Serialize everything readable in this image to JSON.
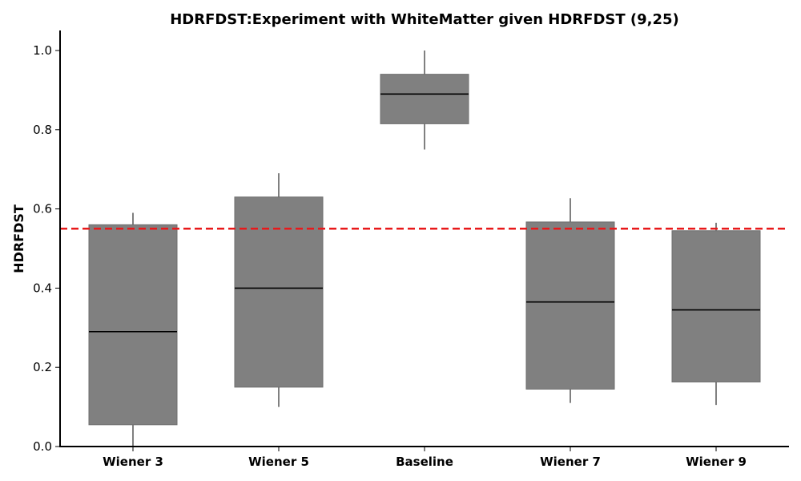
{
  "chart_data": {
    "type": "box",
    "title": "HDRFDST:Experiment with WhiteMatter given HDRFDST (9,25)",
    "xlabel": "",
    "ylabel": "HDRFDST",
    "ylim": [
      0.0,
      1.05
    ],
    "yticks": [
      0.0,
      0.2,
      0.4,
      0.6,
      0.8,
      1.0
    ],
    "ytick_labels": [
      "0.0",
      "0.2",
      "0.4",
      "0.6",
      "0.8",
      "1.0"
    ],
    "categories": [
      "Wiener 3",
      "Wiener 5",
      "Baseline",
      "Wiener 7",
      "Wiener 9"
    ],
    "boxes": [
      {
        "label": "Wiener 3",
        "whisker_low": 0.0,
        "q1": 0.055,
        "median": 0.29,
        "q3": 0.56,
        "whisker_high": 0.59
      },
      {
        "label": "Wiener 5",
        "whisker_low": 0.1,
        "q1": 0.15,
        "median": 0.4,
        "q3": 0.63,
        "whisker_high": 0.69
      },
      {
        "label": "Baseline",
        "whisker_low": 0.75,
        "q1": 0.815,
        "median": 0.89,
        "q3": 0.94,
        "whisker_high": 1.0
      },
      {
        "label": "Wiener 7",
        "whisker_low": 0.11,
        "q1": 0.145,
        "median": 0.365,
        "q3": 0.567,
        "whisker_high": 0.627
      },
      {
        "label": "Wiener 9",
        "whisker_low": 0.105,
        "q1": 0.163,
        "median": 0.345,
        "q3": 0.545,
        "whisker_high": 0.565
      }
    ],
    "reference_line": {
      "y": 0.55,
      "style": "dashed",
      "color": "#e8191b"
    },
    "box_color": "#808080",
    "grid": false,
    "legend": "none"
  }
}
